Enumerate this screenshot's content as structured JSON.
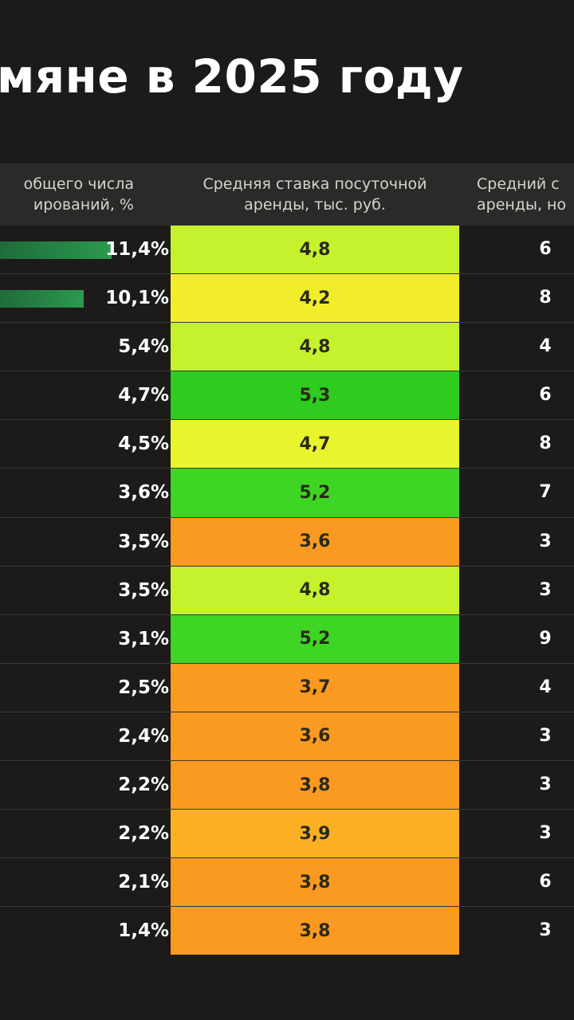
{
  "title": "мяне в 2025 году",
  "header": {
    "share_line1": "общего числа",
    "share_line2": "ирований, %",
    "rate_line1": "Средняя ставка посуточной",
    "rate_line2": "аренды, тыс. руб.",
    "avg_line1": "Средний с",
    "avg_line2": "аренды, но"
  },
  "chart_data": {
    "type": "table",
    "columns": [
      "общего числа ирований, %",
      "Средняя ставка посуточной аренды, тыс. руб.",
      "Средний с аренды, но"
    ],
    "rows": [
      {
        "share": 11.4,
        "share_label": "11,4%",
        "rate": "4,8",
        "rate_color": "#c5f22c",
        "nights": "6"
      },
      {
        "share": 10.1,
        "share_label": "10,1%",
        "rate": "4,2",
        "rate_color": "#f2ed2a",
        "nights": "8"
      },
      {
        "share": 5.4,
        "share_label": "5,4%",
        "rate": "4,8",
        "rate_color": "#c5f22c",
        "nights": "4"
      },
      {
        "share": 4.7,
        "share_label": "4,7%",
        "rate": "5,3",
        "rate_color": "#2ecc1f",
        "nights": "6"
      },
      {
        "share": 4.5,
        "share_label": "4,5%",
        "rate": "4,7",
        "rate_color": "#e9f52c",
        "nights": "8"
      },
      {
        "share": 3.6,
        "share_label": "3,6%",
        "rate": "5,2",
        "rate_color": "#3fd524",
        "nights": "7"
      },
      {
        "share": 3.5,
        "share_label": "3,5%",
        "rate": "3,6",
        "rate_color": "#fa9a20",
        "nights": "3"
      },
      {
        "share": 3.5,
        "share_label": "3,5%",
        "rate": "4,8",
        "rate_color": "#c5f22c",
        "nights": "3"
      },
      {
        "share": 3.1,
        "share_label": "3,1%",
        "rate": "5,2",
        "rate_color": "#3fd524",
        "nights": "9"
      },
      {
        "share": 2.5,
        "share_label": "2,5%",
        "rate": "3,7",
        "rate_color": "#fa9a20",
        "nights": "4"
      },
      {
        "share": 2.4,
        "share_label": "2,4%",
        "rate": "3,6",
        "rate_color": "#fa9a20",
        "nights": "3"
      },
      {
        "share": 2.2,
        "share_label": "2,2%",
        "rate": "3,8",
        "rate_color": "#fa9a20",
        "nights": "3"
      },
      {
        "share": 2.2,
        "share_label": "2,2%",
        "rate": "3,9",
        "rate_color": "#fbb024",
        "nights": "3"
      },
      {
        "share": 2.1,
        "share_label": "2,1%",
        "rate": "3,8",
        "rate_color": "#fa9a20",
        "nights": "6"
      },
      {
        "share": 1.4,
        "share_label": "1,4%",
        "rate": "3,8",
        "rate_color": "#fa9a20",
        "nights": "3"
      }
    ]
  }
}
